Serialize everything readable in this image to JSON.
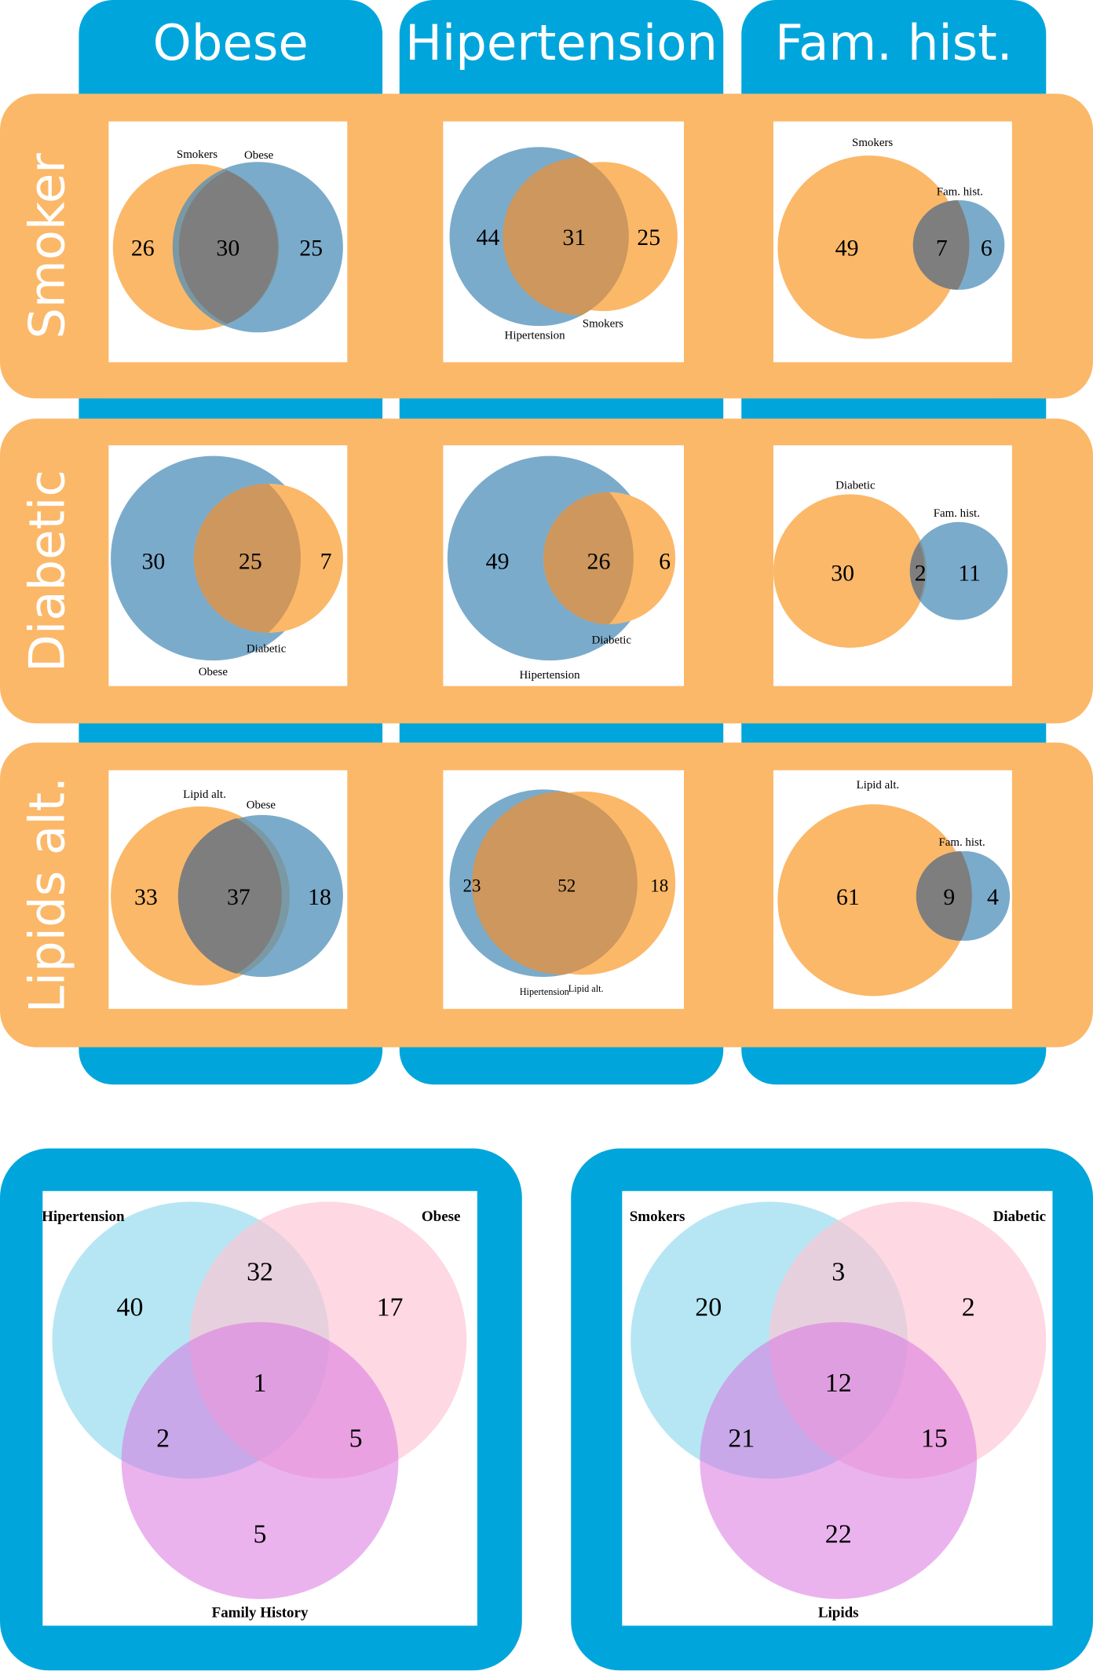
{
  "columns": [
    "Obese",
    "Hipertension",
    "Fam. hist."
  ],
  "rows": [
    "Smoker",
    "Diabetic",
    "Lipids alt."
  ],
  "colors": {
    "blue_frame": "#00a6db",
    "orange_band": "#fbb869",
    "circle_orange": "#fbb869",
    "circle_blue": "#4f8fba",
    "overlap_dark": "#7e7e7e",
    "overlap_brown": "#cd975d",
    "triple_blue": "#9adcef",
    "triple_pink": "#fdc5d4",
    "triple_magenta": "#d974e0"
  },
  "grid": [
    {
      "row": "Smoker",
      "col": "Obese",
      "label_a": "Smokers",
      "label_b": "Obese",
      "only_a": "26",
      "both": "30",
      "only_b": "25"
    },
    {
      "row": "Smoker",
      "col": "Hipertension",
      "label_a": "Hipertension",
      "label_b": "Smokers",
      "only_a": "44",
      "both": "31",
      "only_b": "25"
    },
    {
      "row": "Smoker",
      "col": "Fam. hist.",
      "label_a": "Smokers",
      "label_b": "Fam. hist.",
      "only_a": "49",
      "both": "7",
      "only_b": "6"
    },
    {
      "row": "Diabetic",
      "col": "Obese",
      "label_a": "Obese",
      "label_b": "Diabetic",
      "only_a": "30",
      "both": "25",
      "only_b": "7"
    },
    {
      "row": "Diabetic",
      "col": "Hipertension",
      "label_a": "Hipertension",
      "label_b": "Diabetic",
      "only_a": "49",
      "both": "26",
      "only_b": "6"
    },
    {
      "row": "Diabetic",
      "col": "Fam. hist.",
      "label_a": "Diabetic",
      "label_b": "Fam. hist.",
      "only_a": "30",
      "both": "2",
      "only_b": "11"
    },
    {
      "row": "Lipids alt.",
      "col": "Obese",
      "label_a": "Lipid alt.",
      "label_b": "Obese",
      "only_a": "33",
      "both": "37",
      "only_b": "18"
    },
    {
      "row": "Lipids alt.",
      "col": "Hipertension",
      "label_a": "Hipertension",
      "label_b": "Lipid alt.",
      "only_a": "23",
      "both": "52",
      "only_b": "18"
    },
    {
      "row": "Lipids alt.",
      "col": "Fam. hist.",
      "label_a": "Lipid alt.",
      "label_b": "Fam. hist.",
      "only_a": "61",
      "both": "9",
      "only_b": "4"
    }
  ],
  "triple_venns": [
    {
      "labels": [
        "Hipertension",
        "Obese",
        "Family History"
      ],
      "a_only": "40",
      "b_only": "17",
      "c_only": "5",
      "ab": "32",
      "ac": "2",
      "bc": "5",
      "abc": "1"
    },
    {
      "labels": [
        "Smokers",
        "Diabetic",
        "Lipids"
      ],
      "a_only": "20",
      "b_only": "2",
      "c_only": "22",
      "ab": "3",
      "ac": "21",
      "bc": "15",
      "abc": "12"
    }
  ]
}
